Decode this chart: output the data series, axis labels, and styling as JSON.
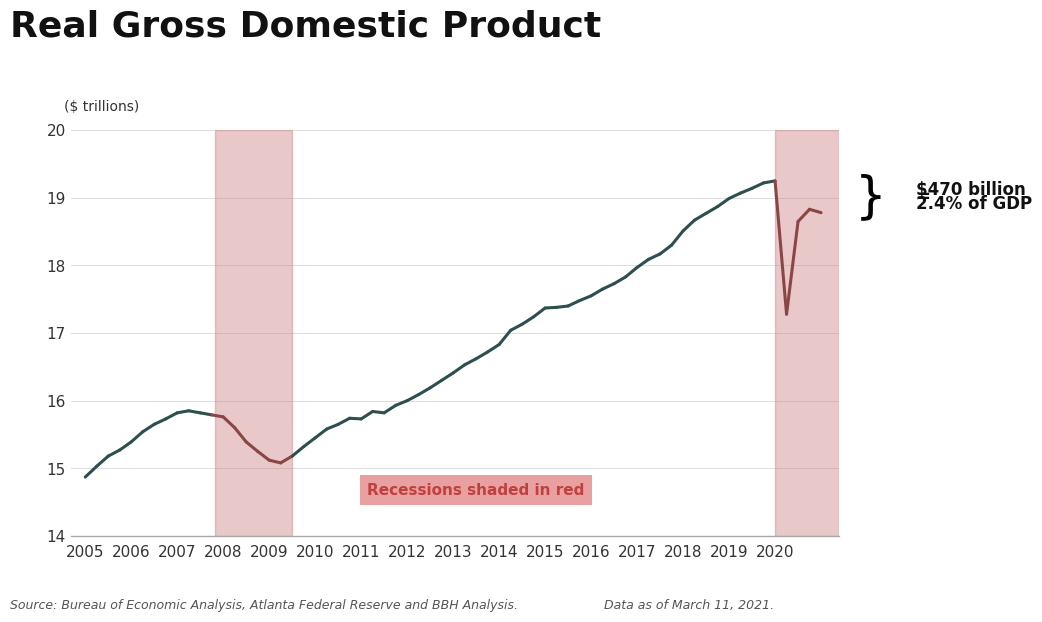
{
  "title": "Real Gross Domestic Product",
  "ylabel": "($ trillions)",
  "ylim": [
    14,
    20
  ],
  "xlim": [
    2004.7,
    2021.4
  ],
  "yticks": [
    14,
    15,
    16,
    17,
    18,
    19,
    20
  ],
  "xticks": [
    2005,
    2006,
    2007,
    2008,
    2009,
    2010,
    2011,
    2012,
    2013,
    2014,
    2015,
    2016,
    2017,
    2018,
    2019,
    2020
  ],
  "recession1_start": 2007.83,
  "recession1_end": 2009.5,
  "recession2_start": 2020.0,
  "recession2_end": 2021.4,
  "recession_color": "#cd8585",
  "recession_alpha": 0.45,
  "line_color": "#2d4f4f",
  "line_color_recession": "#8b4545",
  "annotation_line1": "$470 billion",
  "annotation_line2": "=",
  "annotation_line3": "2.4% of GDP",
  "recession_label": "Recessions shaded in red",
  "source_text": "Source: Bureau of Economic Analysis, Atlanta Federal Reserve and BBH Analysis.",
  "date_text": "Data as of March 11, 2021.",
  "background_color": "#ffffff",
  "gdp_data": {
    "years": [
      2005.0,
      2005.25,
      2005.5,
      2005.75,
      2006.0,
      2006.25,
      2006.5,
      2006.75,
      2007.0,
      2007.25,
      2007.5,
      2007.75,
      2008.0,
      2008.25,
      2008.5,
      2008.75,
      2009.0,
      2009.25,
      2009.5,
      2009.75,
      2010.0,
      2010.25,
      2010.5,
      2010.75,
      2011.0,
      2011.25,
      2011.5,
      2011.75,
      2012.0,
      2012.25,
      2012.5,
      2012.75,
      2013.0,
      2013.25,
      2013.5,
      2013.75,
      2014.0,
      2014.25,
      2014.5,
      2014.75,
      2015.0,
      2015.25,
      2015.5,
      2015.75,
      2016.0,
      2016.25,
      2016.5,
      2016.75,
      2017.0,
      2017.25,
      2017.5,
      2017.75,
      2018.0,
      2018.25,
      2018.5,
      2018.75,
      2019.0,
      2019.25,
      2019.5,
      2019.75,
      2020.0,
      2020.25,
      2020.5,
      2020.75,
      2021.0
    ],
    "values": [
      14.87,
      15.03,
      15.18,
      15.27,
      15.39,
      15.54,
      15.65,
      15.73,
      15.82,
      15.85,
      15.82,
      15.79,
      15.76,
      15.6,
      15.39,
      15.25,
      15.12,
      15.08,
      15.18,
      15.32,
      15.45,
      15.58,
      15.65,
      15.74,
      15.73,
      15.84,
      15.82,
      15.93,
      16.0,
      16.09,
      16.19,
      16.3,
      16.41,
      16.53,
      16.62,
      16.72,
      16.83,
      17.04,
      17.13,
      17.24,
      17.37,
      17.38,
      17.4,
      17.48,
      17.55,
      17.65,
      17.73,
      17.83,
      17.97,
      18.09,
      18.17,
      18.3,
      18.51,
      18.67,
      18.77,
      18.87,
      18.99,
      19.07,
      19.14,
      19.22,
      19.25,
      17.28,
      18.65,
      18.83,
      18.78
    ]
  }
}
